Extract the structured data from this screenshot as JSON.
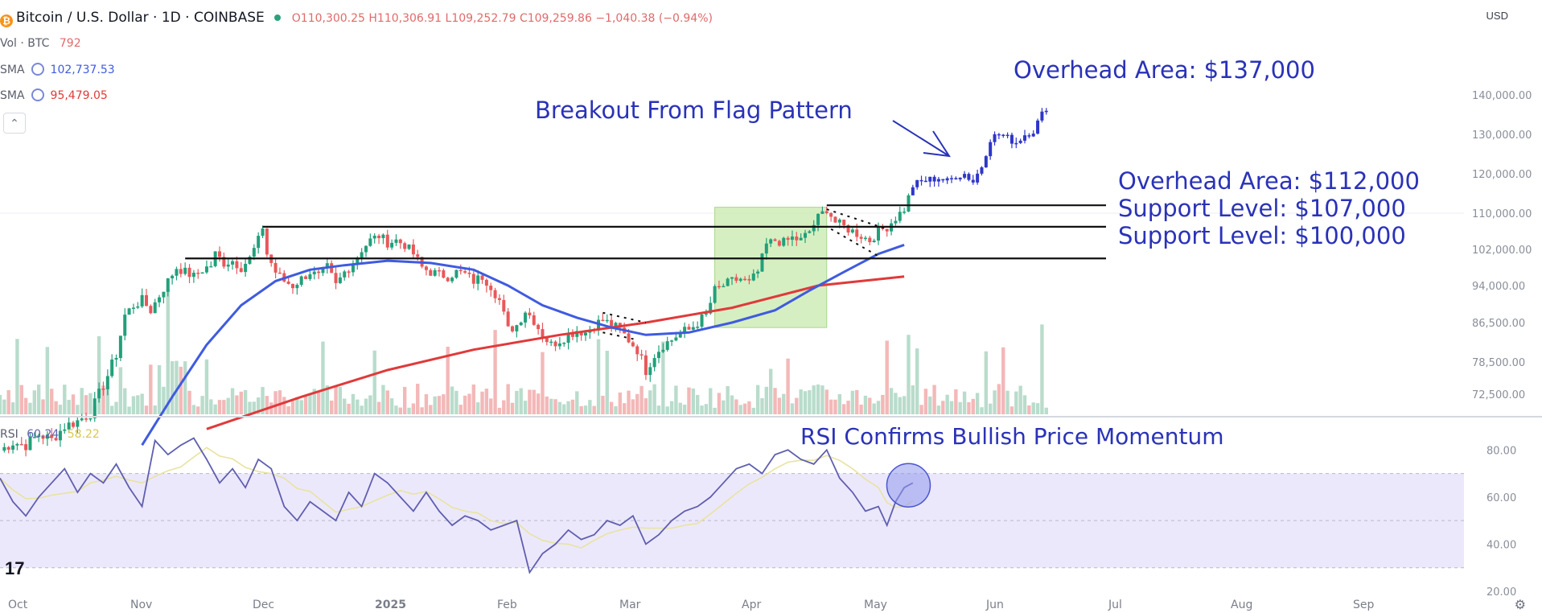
{
  "header": {
    "symbol_icon": "bitcoin-icon",
    "title": "Bitcoin / U.S. Dollar · 1D · COINBASE",
    "ohlc": "O110,300.25  H110,306.91  L109,252.79  C109,259.86  −1,040.38 (−0.94%)",
    "vol_label": "Vol · BTC",
    "vol_value": "792",
    "sma1_label": "SMA",
    "sma1_value": "102,737.53",
    "sma2_label": "SMA",
    "sma2_value": "95,479.05",
    "currency": "USD",
    "collapse_glyph": "⌃"
  },
  "rsi_legend": {
    "label": "RSI",
    "value1": "60.24",
    "value2": "58.22"
  },
  "annotations": {
    "overhead_top": "Overhead Area: $137,000",
    "breakout": "Breakout From Flag Pattern",
    "overhead_112": "Overhead Area: $112,000",
    "support_107": "Support Level: $107,000",
    "support_100": "Support Level: $100,000",
    "rsi_note": "RSI Confirms Bullish Price Momentum"
  },
  "colors": {
    "up": "#22a07a",
    "down": "#e8585a",
    "sma50": "#3f5be0",
    "sma200": "#e03a3a",
    "annotation": "#2a32b8",
    "highlight_box": "#c4e8a8",
    "rsi_line": "#5f5fb0",
    "rsi_band": "#ece8fb"
  },
  "logo": "17",
  "chart_data": {
    "type": "candlestick",
    "price_axis": {
      "ylim": [
        66000,
        145000
      ],
      "ticks": [
        140000,
        130000,
        120000,
        110000,
        102000,
        94000,
        86500,
        78500,
        72500
      ],
      "tick_labels": [
        "140,000.00",
        "130,000.00",
        "120,000.00",
        "110,000.00",
        "102,000.00",
        "94,000.00",
        "86,500.00",
        "78,500.00",
        "72,500.00"
      ]
    },
    "rsi_axis": {
      "ylim": [
        20,
        90
      ],
      "ticks": [
        80,
        60,
        40,
        20
      ],
      "tick_labels": [
        "80.00",
        "60.00",
        "40.00",
        "20.00"
      ],
      "band": [
        30,
        70
      ]
    },
    "x_axis": {
      "tick_labels": [
        "Oct",
        "Nov",
        "Dec",
        "2025",
        "Feb",
        "Mar",
        "Apr",
        "May",
        "Jun",
        "Jul",
        "Aug",
        "Sep"
      ]
    },
    "close_path": [
      [
        0,
        62000
      ],
      [
        3,
        63500
      ],
      [
        6,
        63000
      ],
      [
        9,
        65000
      ],
      [
        12,
        64000
      ],
      [
        15,
        66500
      ],
      [
        18,
        67500
      ],
      [
        21,
        69000
      ],
      [
        23,
        72500
      ],
      [
        25,
        76000
      ],
      [
        27,
        80000
      ],
      [
        29,
        88000
      ],
      [
        31,
        90000
      ],
      [
        33,
        91000
      ],
      [
        35,
        89000
      ],
      [
        37,
        92000
      ],
      [
        39,
        95000
      ],
      [
        41,
        98000
      ],
      [
        43,
        97000
      ],
      [
        45,
        96000
      ],
      [
        47,
        97500
      ],
      [
        49,
        98500
      ],
      [
        50,
        101000
      ],
      [
        52,
        99000
      ],
      [
        54,
        99500
      ],
      [
        56,
        98000
      ],
      [
        58,
        100000
      ],
      [
        60,
        104000
      ],
      [
        61,
        107000
      ],
      [
        62,
        101000
      ],
      [
        64,
        97000
      ],
      [
        66,
        95000
      ],
      [
        68,
        94000
      ],
      [
        70,
        95500
      ],
      [
        72,
        97000
      ],
      [
        74,
        96000
      ],
      [
        76,
        98000
      ],
      [
        78,
        94000
      ],
      [
        80,
        97000
      ],
      [
        82,
        99000
      ],
      [
        84,
        102000
      ],
      [
        86,
        104000
      ],
      [
        88,
        105000
      ],
      [
        90,
        103500
      ],
      [
        92,
        104000
      ],
      [
        94,
        103000
      ],
      [
        96,
        101000
      ],
      [
        98,
        98000
      ],
      [
        100,
        97000
      ],
      [
        102,
        96500
      ],
      [
        104,
        96000
      ],
      [
        106,
        97000
      ],
      [
        108,
        96500
      ],
      [
        110,
        95000
      ],
      [
        112,
        96000
      ],
      [
        114,
        94000
      ],
      [
        116,
        91000
      ],
      [
        118,
        85000
      ],
      [
        120,
        86000
      ],
      [
        122,
        89000
      ],
      [
        124,
        87000
      ],
      [
        126,
        84000
      ],
      [
        128,
        82000
      ],
      [
        130,
        83000
      ],
      [
        132,
        84000
      ],
      [
        134,
        85000
      ],
      [
        136,
        84500
      ],
      [
        138,
        86000
      ],
      [
        140,
        87000
      ],
      [
        142,
        86000
      ],
      [
        144,
        85000
      ],
      [
        146,
        83000
      ],
      [
        148,
        81000
      ],
      [
        150,
        77000
      ],
      [
        152,
        80000
      ],
      [
        154,
        82000
      ],
      [
        156,
        83000
      ],
      [
        158,
        84500
      ],
      [
        160,
        85000
      ],
      [
        162,
        86500
      ],
      [
        164,
        88000
      ],
      [
        166,
        93000
      ],
      [
        168,
        94000
      ],
      [
        170,
        95000
      ],
      [
        172,
        95500
      ],
      [
        174,
        94500
      ],
      [
        176,
        97000
      ],
      [
        178,
        103000
      ],
      [
        180,
        104000
      ],
      [
        182,
        103500
      ],
      [
        184,
        104500
      ],
      [
        186,
        104000
      ],
      [
        188,
        106000
      ],
      [
        190,
        109000
      ],
      [
        192,
        111000
      ],
      [
        194,
        108000
      ],
      [
        196,
        107000
      ],
      [
        198,
        106000
      ],
      [
        200,
        105000
      ],
      [
        202,
        104000
      ],
      [
        204,
        106000
      ],
      [
        206,
        107000
      ],
      [
        208,
        109000
      ],
      [
        210,
        111000
      ],
      [
        212,
        117000
      ],
      [
        214,
        118000
      ],
      [
        216,
        118500
      ],
      [
        218,
        119000
      ],
      [
        220,
        118000
      ],
      [
        222,
        119500
      ],
      [
        224,
        120000
      ],
      [
        226,
        118000
      ],
      [
        228,
        122000
      ],
      [
        230,
        129000
      ],
      [
        232,
        130000
      ],
      [
        234,
        129000
      ],
      [
        236,
        128000
      ],
      [
        238,
        130000
      ],
      [
        240,
        131000
      ],
      [
        242,
        135000
      ],
      [
        243,
        137000
      ]
    ],
    "total_days": 340,
    "flag_box": {
      "x": [
        166,
        192
      ],
      "y": [
        85500,
        111500
      ]
    },
    "levels": [
      {
        "label": "Overhead Area: $112,000",
        "y": 112000,
        "x": [
          192,
          236
        ]
      },
      {
        "label": "Support Level: $107,000",
        "y": 107000,
        "x": [
          61,
          236
        ]
      },
      {
        "label": "Support Level: $100,000",
        "y": 100000,
        "x": [
          43,
          236
        ]
      }
    ],
    "sma50": [
      [
        33,
        63000
      ],
      [
        40,
        72000
      ],
      [
        48,
        82000
      ],
      [
        56,
        90000
      ],
      [
        64,
        95000
      ],
      [
        72,
        97500
      ],
      [
        80,
        98500
      ],
      [
        90,
        99500
      ],
      [
        100,
        99000
      ],
      [
        110,
        97500
      ],
      [
        118,
        94000
      ],
      [
        126,
        90000
      ],
      [
        134,
        87500
      ],
      [
        142,
        85500
      ],
      [
        150,
        84000
      ],
      [
        160,
        84500
      ],
      [
        170,
        86500
      ],
      [
        180,
        89000
      ],
      [
        188,
        93000
      ],
      [
        196,
        97000
      ],
      [
        204,
        101000
      ],
      [
        210,
        103000
      ]
    ],
    "sma200": [
      [
        48,
        66000
      ],
      [
        70,
        72000
      ],
      [
        90,
        77000
      ],
      [
        110,
        81000
      ],
      [
        130,
        84000
      ],
      [
        150,
        86500
      ],
      [
        170,
        89500
      ],
      [
        190,
        94000
      ],
      [
        210,
        96000
      ]
    ],
    "rsi": [
      [
        0,
        68
      ],
      [
        3,
        58
      ],
      [
        6,
        52
      ],
      [
        9,
        60
      ],
      [
        12,
        66
      ],
      [
        15,
        72
      ],
      [
        18,
        62
      ],
      [
        21,
        70
      ],
      [
        24,
        66
      ],
      [
        27,
        74
      ],
      [
        30,
        64
      ],
      [
        33,
        56
      ],
      [
        36,
        84
      ],
      [
        39,
        78
      ],
      [
        42,
        82
      ],
      [
        45,
        85
      ],
      [
        48,
        76
      ],
      [
        51,
        66
      ],
      [
        54,
        72
      ],
      [
        57,
        64
      ],
      [
        60,
        76
      ],
      [
        63,
        72
      ],
      [
        66,
        56
      ],
      [
        69,
        50
      ],
      [
        72,
        58
      ],
      [
        75,
        54
      ],
      [
        78,
        50
      ],
      [
        81,
        62
      ],
      [
        84,
        56
      ],
      [
        87,
        70
      ],
      [
        90,
        66
      ],
      [
        93,
        60
      ],
      [
        96,
        54
      ],
      [
        99,
        62
      ],
      [
        102,
        54
      ],
      [
        105,
        48
      ],
      [
        108,
        52
      ],
      [
        111,
        50
      ],
      [
        114,
        46
      ],
      [
        117,
        48
      ],
      [
        120,
        50
      ],
      [
        123,
        28
      ],
      [
        126,
        36
      ],
      [
        129,
        40
      ],
      [
        132,
        46
      ],
      [
        135,
        42
      ],
      [
        138,
        44
      ],
      [
        141,
        50
      ],
      [
        144,
        48
      ],
      [
        147,
        52
      ],
      [
        150,
        40
      ],
      [
        153,
        44
      ],
      [
        156,
        50
      ],
      [
        159,
        54
      ],
      [
        162,
        56
      ],
      [
        165,
        60
      ],
      [
        168,
        66
      ],
      [
        171,
        72
      ],
      [
        174,
        74
      ],
      [
        177,
        70
      ],
      [
        180,
        78
      ],
      [
        183,
        80
      ],
      [
        186,
        76
      ],
      [
        189,
        74
      ],
      [
        192,
        80
      ],
      [
        195,
        68
      ],
      [
        198,
        62
      ],
      [
        201,
        54
      ],
      [
        204,
        56
      ],
      [
        206,
        48
      ],
      [
        208,
        58
      ],
      [
        210,
        64
      ],
      [
        212,
        66
      ]
    ],
    "rsi_highlight": {
      "x": 211,
      "y": 65
    }
  }
}
